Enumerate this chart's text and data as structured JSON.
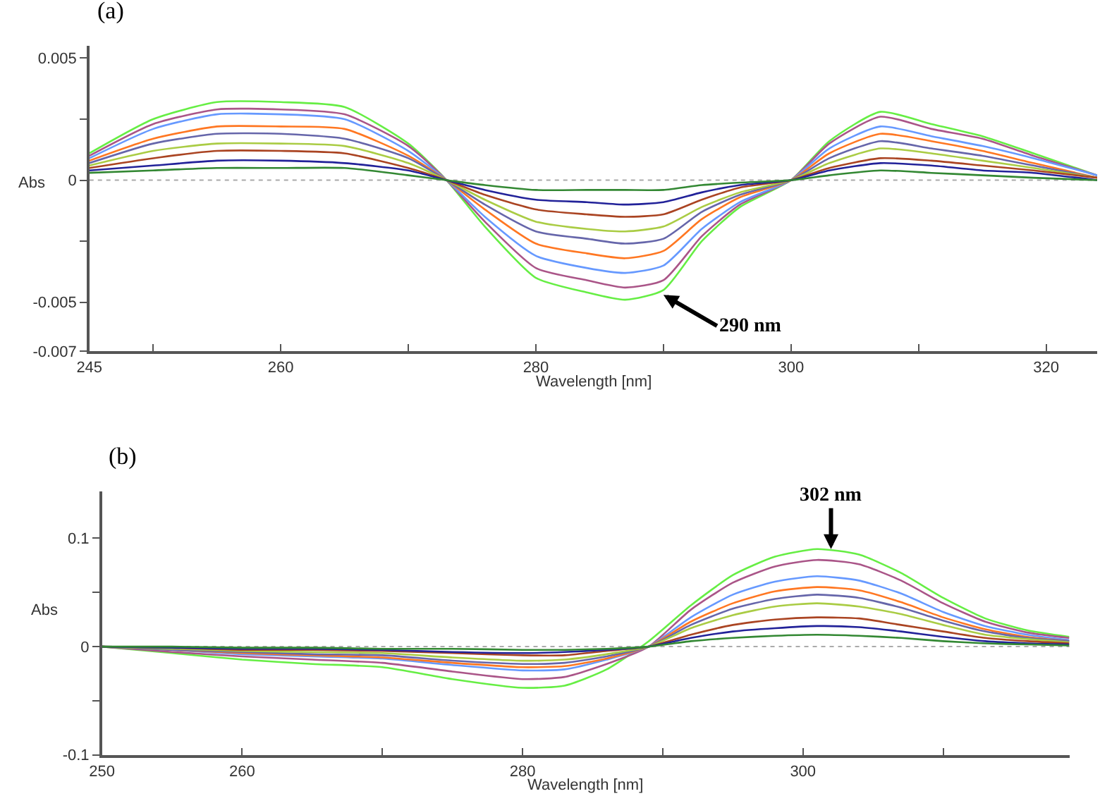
{
  "chart_data": [
    {
      "type": "line",
      "title": "(a)",
      "xlabel": "Wavelength [nm]",
      "ylabel": "Abs",
      "x": [
        245,
        250,
        255,
        260,
        265,
        270,
        273,
        276,
        280,
        284,
        287,
        290,
        293,
        296,
        300,
        303,
        307,
        311,
        315,
        319,
        324
      ],
      "series": [
        {
          "color": "#66ee44",
          "values": [
            0.0011,
            0.0025,
            0.0032,
            0.0032,
            0.003,
            0.0015,
            0,
            -0.0019,
            -0.004,
            -0.0046,
            -0.0049,
            -0.0045,
            -0.0025,
            -0.0011,
            0,
            0.0016,
            0.0028,
            0.0023,
            0.0018,
            0.0011,
            0.0002
          ]
        },
        {
          "color": "#aa5588",
          "values": [
            0.001,
            0.0023,
            0.0029,
            0.0029,
            0.0027,
            0.0014,
            0,
            -0.0017,
            -0.0036,
            -0.0041,
            -0.0044,
            -0.0041,
            -0.0023,
            -0.001,
            0,
            0.0015,
            0.0026,
            0.0021,
            0.0017,
            0.001,
            0.0002
          ]
        },
        {
          "color": "#6699ff",
          "values": [
            0.0009,
            0.0021,
            0.0027,
            0.0027,
            0.0025,
            0.0012,
            0,
            -0.0015,
            -0.0031,
            -0.0036,
            -0.0038,
            -0.0035,
            -0.002,
            -0.0009,
            0,
            0.0013,
            0.0022,
            0.0018,
            0.0014,
            0.0009,
            0.0002
          ]
        },
        {
          "color": "#ff7722",
          "values": [
            0.0008,
            0.0017,
            0.0022,
            0.0022,
            0.0021,
            0.001,
            0,
            -0.0012,
            -0.0026,
            -0.003,
            -0.0032,
            -0.0029,
            -0.0016,
            -0.0007,
            0,
            0.0011,
            0.0019,
            0.0016,
            0.0012,
            0.0007,
            0.0001
          ]
        },
        {
          "color": "#6666aa",
          "values": [
            0.0007,
            0.0015,
            0.0019,
            0.0019,
            0.0017,
            0.0009,
            0,
            -0.001,
            -0.0021,
            -0.0024,
            -0.0026,
            -0.0024,
            -0.0013,
            -0.0006,
            0,
            0.0009,
            0.0016,
            0.0013,
            0.001,
            0.0006,
            0.0001
          ]
        },
        {
          "color": "#aacc44",
          "values": [
            0.0006,
            0.0012,
            0.0015,
            0.0015,
            0.0014,
            0.0007,
            0,
            -0.0008,
            -0.0017,
            -0.002,
            -0.0021,
            -0.0019,
            -0.0011,
            -0.0005,
            0,
            0.0007,
            0.0013,
            0.0011,
            0.0008,
            0.0005,
            0.0001
          ]
        },
        {
          "color": "#aa4422",
          "values": [
            0.0005,
            0.0009,
            0.0012,
            0.0012,
            0.0011,
            0.0005,
            0,
            -0.0006,
            -0.0012,
            -0.0014,
            -0.0015,
            -0.0014,
            -0.0008,
            -0.0003,
            0,
            0.0005,
            0.0009,
            0.0008,
            0.0006,
            0.0004,
            0.0001
          ]
        },
        {
          "color": "#222299",
          "values": [
            0.0004,
            0.0006,
            0.0008,
            0.0008,
            0.0007,
            0.0004,
            0,
            -0.0004,
            -0.0008,
            -0.0009,
            -0.001,
            -0.0009,
            -0.0005,
            -0.0002,
            0,
            0.0004,
            0.0007,
            0.0006,
            0.0004,
            0.0003,
            0
          ]
        },
        {
          "color": "#338833",
          "values": [
            0.0003,
            0.0004,
            0.0005,
            0.0005,
            0.0005,
            0.0002,
            0,
            -0.0002,
            -0.0004,
            -0.0004,
            -0.0004,
            -0.0004,
            -0.0002,
            -0.0001,
            0,
            0.0002,
            0.0004,
            0.0003,
            0.0002,
            0.0001,
            0
          ]
        }
      ],
      "xlim": [
        245,
        324
      ],
      "ylim": [
        -0.007,
        0.0055
      ],
      "xticks": [
        245,
        {
          "value": 250,
          "label": null
        },
        260,
        {
          "value": 270,
          "label": null
        },
        280,
        {
          "value": 290,
          "label": null
        },
        300,
        {
          "value": 310,
          "label": null
        },
        320
      ],
      "yticks": [
        -0.007,
        -0.005,
        {
          "value": -0.0025,
          "label": null
        },
        0,
        {
          "value": 0.0025,
          "label": null
        },
        0.005
      ],
      "grid": false,
      "ref_lines": [
        {
          "axis": "y",
          "value": 0,
          "color": "#aaaaaa",
          "line_style": "dotted"
        }
      ],
      "annotations": [
        {
          "text": "290 nm",
          "x": 290,
          "y": -0.0047
        }
      ]
    },
    {
      "type": "line",
      "title": "(b)",
      "xlabel": "Wavelength [nm]",
      "ylabel": "Abs",
      "x": [
        250,
        255,
        260,
        265,
        270,
        275,
        280,
        283,
        286,
        289,
        292,
        295,
        298,
        301,
        304,
        307,
        310,
        313,
        316,
        319
      ],
      "series": [
        {
          "color": "#66ee44",
          "values": [
            0,
            -0.006,
            -0.012,
            -0.016,
            -0.019,
            -0.03,
            -0.038,
            -0.036,
            -0.021,
            0.005,
            0.038,
            0.066,
            0.083,
            0.09,
            0.085,
            0.068,
            0.045,
            0.026,
            0.015,
            0.009
          ]
        },
        {
          "color": "#aa5588",
          "values": [
            0,
            -0.005,
            -0.009,
            -0.012,
            -0.015,
            -0.023,
            -0.03,
            -0.028,
            -0.016,
            0,
            0.034,
            0.059,
            0.074,
            0.08,
            0.076,
            0.061,
            0.04,
            0.023,
            0.013,
            0.008
          ]
        },
        {
          "color": "#6699ff",
          "values": [
            0,
            -0.003,
            -0.007,
            -0.009,
            -0.011,
            -0.017,
            -0.022,
            -0.021,
            -0.012,
            0,
            0.027,
            0.048,
            0.06,
            0.065,
            0.061,
            0.049,
            0.032,
            0.019,
            0.011,
            0.006
          ]
        },
        {
          "color": "#ff7722",
          "values": [
            0,
            -0.003,
            -0.006,
            -0.008,
            -0.01,
            -0.015,
            -0.019,
            -0.018,
            -0.011,
            0,
            0.023,
            0.04,
            0.051,
            0.055,
            0.052,
            0.041,
            0.027,
            0.016,
            0.009,
            0.005
          ]
        },
        {
          "color": "#6666aa",
          "values": [
            0,
            -0.003,
            -0.005,
            -0.007,
            -0.008,
            -0.013,
            -0.016,
            -0.015,
            -0.009,
            0,
            0.02,
            0.035,
            0.044,
            0.048,
            0.045,
            0.036,
            0.024,
            0.014,
            0.008,
            0.005
          ]
        },
        {
          "color": "#aacc44",
          "values": [
            0,
            -0.002,
            -0.004,
            -0.005,
            -0.006,
            -0.01,
            -0.013,
            -0.012,
            -0.007,
            0,
            0.017,
            0.029,
            0.037,
            0.04,
            0.037,
            0.03,
            0.02,
            0.011,
            0.007,
            0.004
          ]
        },
        {
          "color": "#aa4422",
          "values": [
            0,
            -0.001,
            -0.003,
            -0.003,
            -0.004,
            -0.006,
            -0.008,
            -0.008,
            -0.004,
            0,
            0.011,
            0.02,
            0.025,
            0.027,
            0.026,
            0.02,
            0.014,
            0.008,
            0.005,
            0.003
          ]
        },
        {
          "color": "#222299",
          "values": [
            0,
            -0.001,
            -0.002,
            -0.002,
            -0.003,
            -0.005,
            -0.006,
            -0.005,
            -0.003,
            0,
            0.008,
            0.014,
            0.017,
            0.019,
            0.018,
            0.014,
            0.009,
            0.005,
            0.003,
            0.002
          ]
        },
        {
          "color": "#338833",
          "values": [
            0,
            0,
            -0.001,
            -0.001,
            -0.002,
            -0.002,
            -0.003,
            -0.003,
            -0.002,
            0,
            0.005,
            0.008,
            0.01,
            0.011,
            0.01,
            0.008,
            0.005,
            0.003,
            0.002,
            0.001
          ]
        }
      ],
      "xlim": [
        250,
        319
      ],
      "ylim": [
        -0.1,
        0.143
      ],
      "xticks": [
        250,
        260,
        {
          "value": 270,
          "label": null
        },
        280,
        {
          "value": 290,
          "label": null
        },
        300,
        {
          "value": 310,
          "label": null
        }
      ],
      "yticks": [
        -0.1,
        {
          "value": -0.05,
          "label": null
        },
        0,
        {
          "value": 0.05,
          "label": null
        },
        0.1
      ],
      "grid": false,
      "ref_lines": [
        {
          "axis": "y",
          "value": 0,
          "color": "#aaaaaa",
          "line_style": "dotted"
        }
      ],
      "annotations": [
        {
          "text": "302 nm",
          "x": 302,
          "y": 0.09
        }
      ]
    }
  ]
}
